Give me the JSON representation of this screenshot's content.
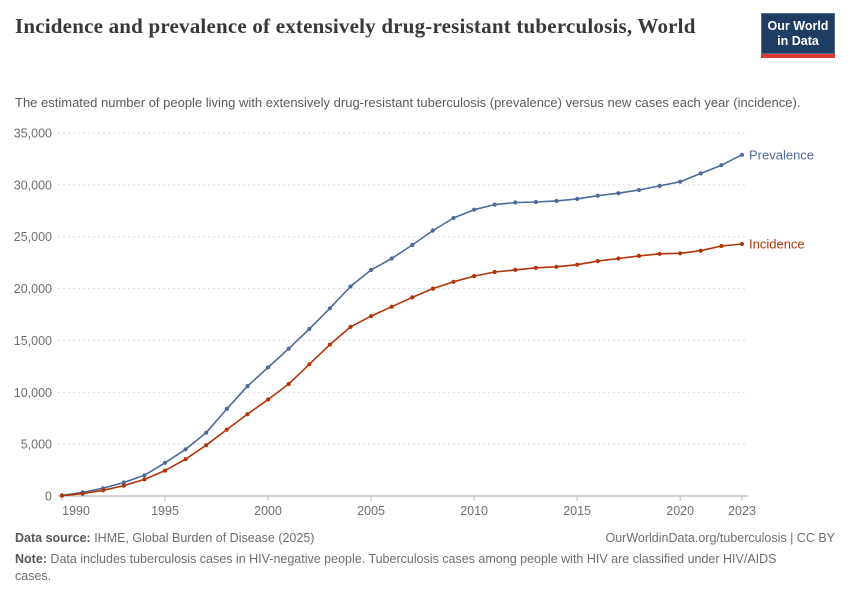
{
  "header": {
    "title": "Incidence and prevalence of extensively drug-resistant tuberculosis, World",
    "subtitle": "The estimated number of people living with extensively drug-resistant tuberculosis (prevalence) versus new cases each year (incidence).",
    "logo": {
      "line1": "Our World",
      "line2": "in Data",
      "bg_color": "#1d3d63",
      "bar_color": "#d93a34"
    }
  },
  "chart_data": {
    "type": "line",
    "title": "Incidence and prevalence of extensively drug-resistant tuberculosis, World",
    "xlabel": "",
    "ylabel": "",
    "x": [
      1990,
      1991,
      1992,
      1993,
      1994,
      1995,
      1996,
      1997,
      1998,
      1999,
      2000,
      2001,
      2002,
      2003,
      2004,
      2005,
      2006,
      2007,
      2008,
      2009,
      2010,
      2011,
      2012,
      2013,
      2014,
      2015,
      2016,
      2017,
      2018,
      2019,
      2020,
      2021,
      2022,
      2023
    ],
    "series": [
      {
        "name": "Prevalence",
        "color": "#4c6a9c",
        "values": [
          60,
          350,
          750,
          1300,
          2000,
          3200,
          4500,
          6100,
          8400,
          10600,
          12400,
          14200,
          16100,
          18100,
          20200,
          21800,
          22900,
          24200,
          25600,
          26800,
          27600,
          28100,
          28300,
          28350,
          28450,
          28650,
          28950,
          29200,
          29500,
          29900,
          30300,
          31100,
          31900,
          32900
        ]
      },
      {
        "name": "Incidence",
        "color": "#b13507",
        "values": [
          30,
          230,
          550,
          1000,
          1600,
          2450,
          3550,
          4900,
          6400,
          7900,
          9300,
          10800,
          12700,
          14600,
          16300,
          17350,
          18250,
          19150,
          20000,
          20650,
          21200,
          21600,
          21800,
          22000,
          22100,
          22300,
          22650,
          22900,
          23150,
          23350,
          23400,
          23650,
          24100,
          24300
        ]
      }
    ],
    "ylim": [
      0,
      35000
    ],
    "yticks": [
      0,
      5000,
      10000,
      15000,
      20000,
      25000,
      30000,
      35000
    ],
    "ytick_labels": [
      "0",
      "5,000",
      "10,000",
      "15,000",
      "20,000",
      "25,000",
      "30,000",
      "35,000"
    ],
    "xticks": [
      1990,
      1995,
      2000,
      2005,
      2010,
      2015,
      2020,
      2023
    ],
    "grid": "horizontal-dashed",
    "legend_position": "line-end-labels"
  },
  "footer": {
    "source_label": "Data source:",
    "source_text": " IHME, Global Burden of Disease (2025)",
    "link_text": "OurWorldinData.org/tuberculosis | CC BY",
    "note_label": "Note:",
    "note_text": " Data includes tuberculosis cases in HIV-negative people. Tuberculosis cases among people with HIV are classified under HIV/AIDS cases."
  }
}
